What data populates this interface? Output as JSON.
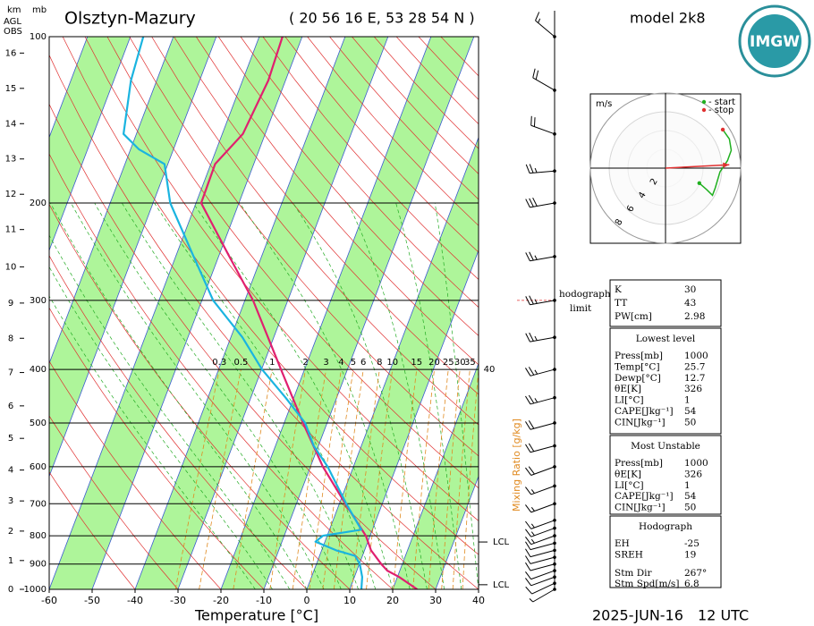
{
  "header": {
    "km_label": "km",
    "agl_label": "AGL",
    "obs_label": "OBS",
    "mb_label": "mb",
    "station": "Olsztyn-Mazury",
    "coords": "( 20 56 16 E, 53 28 54 N )",
    "model": "model 2k8",
    "logo": "IMGW",
    "date": "2025-JUN-16",
    "time": "12 UTC"
  },
  "chart_data": {
    "type": "skew-t",
    "xlabel": "Temperature [°C]",
    "xlim": [
      -60,
      40
    ],
    "xticks": [
      -60,
      -50,
      -40,
      -30,
      -20,
      -10,
      0,
      10,
      20,
      30,
      40
    ],
    "ylim": [
      1000,
      100
    ],
    "yticks": [
      1000,
      900,
      800,
      700,
      600,
      500,
      400,
      300,
      200,
      100
    ],
    "log_y": true,
    "km_ticks": [
      0,
      1,
      2,
      3,
      4,
      5,
      6,
      7,
      8,
      9,
      10,
      11,
      12,
      13,
      14,
      15,
      16
    ],
    "mixing_ratio_label": "Mixing Ratio [g/kg]",
    "mixing_ratios": [
      0.3,
      0.5,
      1,
      2,
      3,
      4,
      5,
      6,
      8,
      10,
      15,
      20,
      25,
      30,
      35,
      40
    ],
    "series": [
      {
        "color": "#e0206f",
        "y": [
          1000,
          950,
          925,
          900,
          850,
          800,
          700,
          600,
          500,
          400,
          300,
          250,
          200,
          170,
          150,
          120,
          100
        ],
        "values": [
          25.7,
          20.4,
          17.1,
          15.1,
          11.5,
          9.0,
          1.4,
          -7.1,
          -15.6,
          -25.5,
          -38.1,
          -47.5,
          -58.8,
          -59,
          -55.2,
          -54,
          -54.6
        ]
      },
      {
        "color": "#1ab4e0",
        "y": [
          1000,
          950,
          900,
          870,
          850,
          820,
          800,
          780,
          700,
          600,
          550,
          500,
          450,
          400,
          350,
          300,
          250,
          200,
          170,
          160,
          150,
          120,
          100
        ],
        "values": [
          12.7,
          11.8,
          10.1,
          8.3,
          3.4,
          -2.2,
          -1,
          7.4,
          1.6,
          -6,
          -11.1,
          -15.1,
          -21.9,
          -29.9,
          -37.3,
          -47.4,
          -55.8,
          -66,
          -70.8,
          -78,
          -83,
          -86,
          -87
        ]
      }
    ],
    "lcl": [
      {
        "pressure": 821,
        "label": "LCL"
      },
      {
        "pressure": 981,
        "label": "LCL"
      }
    ],
    "hodograph_limit": {
      "pressure": 300,
      "labels": [
        "hodograph",
        "limit"
      ]
    },
    "winds": {
      "pressure": [
        1000,
        975,
        950,
        925,
        900,
        875,
        850,
        825,
        800,
        775,
        750,
        700,
        650,
        600,
        550,
        500,
        450,
        400,
        350,
        300,
        250,
        200,
        175,
        150,
        125,
        100
      ],
      "speed": [
        5,
        10,
        10,
        10,
        10,
        10,
        10,
        10,
        15,
        15,
        15,
        15,
        15,
        20,
        20,
        20,
        25,
        25,
        25,
        25,
        25,
        30,
        25,
        20,
        20,
        15
      ],
      "direction": [
        240,
        245,
        250,
        250,
        255,
        255,
        255,
        255,
        250,
        250,
        250,
        250,
        250,
        250,
        255,
        255,
        255,
        255,
        260,
        260,
        260,
        260,
        265,
        290,
        300,
        310
      ]
    }
  },
  "hodograph": {
    "unit": "m/s",
    "start_label": "- start",
    "stop_label": "- stop",
    "rings": [
      2,
      4,
      6,
      8
    ],
    "u": [
      3.6,
      4.4,
      5.0,
      5.3,
      5.8,
      6.6,
      7.0,
      6.8,
      6.1
    ],
    "v": [
      -1.6,
      -2.3,
      -2.9,
      -2.1,
      -0.4,
      0.8,
      1.9,
      3.1,
      4.1
    ]
  },
  "indices": [
    {
      "rows": [
        [
          "K",
          "30"
        ],
        [
          "TT",
          "43"
        ],
        [
          "PW[cm]",
          "2.98"
        ]
      ]
    },
    {
      "title": "Lowest level",
      "rows": [
        [
          "Press[mb]",
          "1000"
        ],
        [
          "Temp[°C]",
          "25.7"
        ],
        [
          "Dewp[°C]",
          "12.7"
        ],
        [
          "θE[K]",
          "326"
        ],
        [
          "LI[°C]",
          "1"
        ],
        [
          "CAPE[Jkg⁻¹]",
          "54"
        ],
        [
          "CIN[Jkg⁻¹]",
          "50"
        ]
      ]
    },
    {
      "title": "Most Unstable",
      "rows": [
        [
          "Press[mb]",
          "1000"
        ],
        [
          "θE[K]",
          "326"
        ],
        [
          "LI[°C]",
          "1"
        ],
        [
          "CAPE[Jkg⁻¹]",
          "54"
        ],
        [
          "CIN[Jkg⁻¹]",
          "50"
        ]
      ]
    },
    {
      "title": "Hodograph",
      "rows": [
        [
          "EH",
          "-25"
        ],
        [
          "SREH",
          "19"
        ],
        [
          "Stm Dir",
          "267°"
        ],
        [
          "Stm Spd[m/s]",
          "6.8"
        ]
      ]
    }
  ]
}
